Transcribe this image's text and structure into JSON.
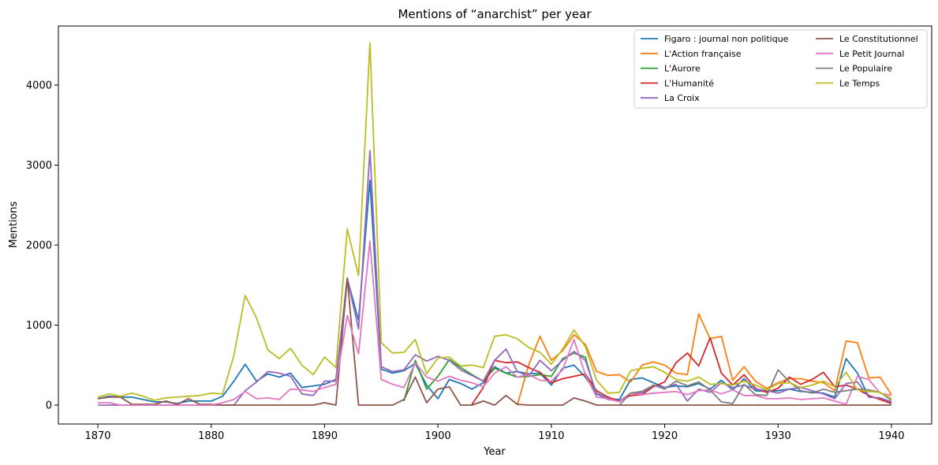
{
  "chart_data": {
    "type": "line",
    "title": "Mentions of “anarchist” per year",
    "xlabel": "Year",
    "ylabel": "Mentions",
    "xlim": [
      1870,
      1940
    ],
    "ylim": [
      0,
      4500
    ],
    "xticks": [
      "1870",
      "1880",
      "1890",
      "1900",
      "1910",
      "1920",
      "1930",
      "1940"
    ],
    "yticks": [
      "0",
      "1000",
      "2000",
      "3000",
      "4000"
    ],
    "legend_position": "top-right",
    "legend_columns": 2,
    "grid": false,
    "series": [
      {
        "name": "Figaro : journal non politique",
        "color": "#1f77b4",
        "x": [
          1870,
          1871,
          1872,
          1873,
          1874,
          1875,
          1876,
          1877,
          1878,
          1879,
          1880,
          1881,
          1882,
          1883,
          1884,
          1885,
          1886,
          1887,
          1888,
          1889,
          1890,
          1891,
          1892,
          1893,
          1894,
          1895,
          1896,
          1897,
          1898,
          1899,
          1900,
          1901,
          1902,
          1903,
          1904,
          1905,
          1906,
          1907,
          1908,
          1909,
          1910,
          1911,
          1912,
          1913,
          1914,
          1915,
          1916,
          1917,
          1918,
          1919,
          1920,
          1921,
          1922,
          1923,
          1924,
          1925,
          1926,
          1927,
          1928,
          1929,
          1930,
          1931,
          1932,
          1933,
          1934,
          1935,
          1936,
          1937,
          1938,
          1939,
          1940
        ],
        "y": [
          80,
          110,
          100,
          100,
          70,
          40,
          40,
          20,
          50,
          50,
          50,
          110,
          300,
          510,
          300,
          390,
          350,
          400,
          220,
          240,
          260,
          320,
          1580,
          1060,
          2810,
          450,
          400,
          430,
          520,
          250,
          80,
          320,
          270,
          200,
          280,
          480,
          400,
          420,
          390,
          400,
          250,
          460,
          500,
          350,
          150,
          80,
          70,
          320,
          340,
          280,
          220,
          240,
          230,
          270,
          200,
          310,
          190,
          330,
          180,
          170,
          180,
          200,
          170,
          160,
          150,
          100,
          580,
          400,
          100,
          90,
          30
        ]
      },
      {
        "name": "L'Action française",
        "color": "#ff7f0e",
        "x": [
          1907,
          1908,
          1909,
          1910,
          1911,
          1912,
          1913,
          1914,
          1915,
          1916,
          1917,
          1918,
          1919,
          1920,
          1921,
          1922,
          1923,
          1924,
          1925,
          1926,
          1927,
          1928,
          1929,
          1930,
          1931,
          1932,
          1933,
          1934,
          1935,
          1936,
          1937,
          1938,
          1939,
          1940
        ],
        "y": [
          0,
          500,
          860,
          560,
          680,
          880,
          760,
          420,
          370,
          380,
          290,
          500,
          540,
          500,
          400,
          380,
          1140,
          830,
          860,
          310,
          480,
          300,
          210,
          280,
          330,
          330,
          300,
          280,
          180,
          800,
          780,
          340,
          350,
          130
        ]
      },
      {
        "name": "L'Aurore",
        "color": "#2ca02c",
        "x": [
          1897,
          1898,
          1899,
          1900,
          1901,
          1902,
          1903,
          1904,
          1905,
          1906,
          1907,
          1908,
          1909,
          1910,
          1911,
          1912,
          1913,
          1914
        ],
        "y": [
          50,
          560,
          200,
          360,
          570,
          470,
          380,
          300,
          460,
          400,
          350,
          360,
          380,
          360,
          580,
          650,
          600,
          100
        ]
      },
      {
        "name": "L'Humanité",
        "color": "#d62728",
        "x": [
          1903,
          1904,
          1905,
          1906,
          1907,
          1908,
          1909,
          1910,
          1911,
          1912,
          1913,
          1914,
          1915,
          1916,
          1917,
          1918,
          1919,
          1920,
          1921,
          1922,
          1923,
          1924,
          1925,
          1926,
          1927,
          1928,
          1929,
          1930,
          1931,
          1932,
          1933,
          1934,
          1935,
          1936,
          1937,
          1938,
          1939,
          1940
        ],
        "y": [
          10,
          220,
          560,
          530,
          540,
          470,
          410,
          280,
          330,
          360,
          390,
          180,
          100,
          50,
          120,
          130,
          230,
          290,
          530,
          650,
          490,
          840,
          400,
          250,
          380,
          210,
          160,
          210,
          350,
          260,
          320,
          410,
          230,
          250,
          200,
          120,
          70,
          20
        ]
      },
      {
        "name": "La Croix",
        "color": "#9467bd",
        "x": [
          1870,
          1871,
          1872,
          1873,
          1874,
          1875,
          1876,
          1877,
          1878,
          1879,
          1880,
          1881,
          1882,
          1883,
          1884,
          1885,
          1886,
          1887,
          1888,
          1889,
          1890,
          1891,
          1892,
          1893,
          1894,
          1895,
          1896,
          1897,
          1898,
          1899,
          1900,
          1901,
          1902,
          1903,
          1904,
          1905,
          1906,
          1907,
          1908,
          1909,
          1910,
          1911,
          1912,
          1913,
          1914,
          1915,
          1916,
          1917,
          1918,
          1919,
          1920,
          1921,
          1922,
          1923,
          1924,
          1925,
          1926,
          1927,
          1928,
          1929,
          1930,
          1931,
          1932,
          1933,
          1934,
          1935,
          1936,
          1937,
          1938,
          1939,
          1940
        ],
        "y": [
          0,
          0,
          0,
          0,
          0,
          0,
          0,
          0,
          0,
          0,
          0,
          0,
          0,
          180,
          290,
          420,
          400,
          360,
          140,
          120,
          300,
          300,
          1580,
          950,
          3180,
          480,
          420,
          440,
          630,
          550,
          610,
          560,
          440,
          370,
          300,
          560,
          700,
          420,
          360,
          560,
          430,
          560,
          670,
          560,
          140,
          70,
          50,
          150,
          150,
          250,
          220,
          260,
          50,
          200,
          160,
          280,
          220,
          250,
          200,
          180,
          150,
          200,
          220,
          180,
          140,
          80,
          270,
          290,
          100,
          90,
          40
        ]
      },
      {
        "name": "Le Constitutionnel",
        "color": "#8c564b",
        "x": [
          1870,
          1871,
          1872,
          1873,
          1874,
          1875,
          1876,
          1877,
          1878,
          1879,
          1880,
          1881,
          1882,
          1883,
          1884,
          1885,
          1886,
          1887,
          1888,
          1889,
          1890,
          1891,
          1892,
          1893,
          1894,
          1895,
          1896,
          1897,
          1898,
          1899,
          1900,
          1901,
          1902,
          1903,
          1904,
          1905,
          1906,
          1907,
          1908,
          1909,
          1910,
          1911,
          1912,
          1913,
          1914,
          1915,
          1916,
          1917,
          1918,
          1919,
          1920,
          1921,
          1922,
          1923,
          1924,
          1925,
          1926,
          1927,
          1928,
          1929,
          1930,
          1931,
          1932,
          1933,
          1934,
          1935,
          1936,
          1937,
          1938,
          1939,
          1940
        ],
        "y": [
          80,
          100,
          100,
          10,
          10,
          10,
          50,
          10,
          80,
          10,
          10,
          0,
          0,
          0,
          0,
          0,
          0,
          0,
          0,
          0,
          30,
          0,
          1590,
          0,
          0,
          0,
          0,
          70,
          350,
          30,
          200,
          230,
          0,
          0,
          50,
          0,
          120,
          10,
          0,
          0,
          0,
          0,
          90,
          50,
          0,
          0,
          0,
          0,
          0,
          0,
          0,
          0,
          0,
          0,
          0,
          0,
          0,
          0,
          0,
          0,
          0,
          0,
          0,
          0,
          0,
          0,
          0,
          0,
          0,
          0,
          0
        ]
      },
      {
        "name": "Le Petit Journal",
        "color": "#e377c2",
        "x": [
          1870,
          1871,
          1872,
          1873,
          1874,
          1875,
          1876,
          1877,
          1878,
          1879,
          1880,
          1881,
          1882,
          1883,
          1884,
          1885,
          1886,
          1887,
          1888,
          1889,
          1890,
          1891,
          1892,
          1893,
          1894,
          1895,
          1896,
          1897,
          1898,
          1899,
          1900,
          1901,
          1902,
          1903,
          1904,
          1905,
          1906,
          1907,
          1908,
          1909,
          1910,
          1911,
          1912,
          1913,
          1914,
          1915,
          1916,
          1917,
          1918,
          1919,
          1920,
          1921,
          1922,
          1923,
          1924,
          1925,
          1926,
          1927,
          1928,
          1929,
          1930,
          1931,
          1932,
          1933,
          1934,
          1935,
          1936,
          1937,
          1938,
          1939,
          1940
        ],
        "y": [
          30,
          30,
          0,
          0,
          0,
          0,
          0,
          0,
          0,
          0,
          0,
          30,
          70,
          170,
          80,
          90,
          70,
          200,
          190,
          170,
          220,
          260,
          1120,
          640,
          2050,
          320,
          260,
          220,
          530,
          350,
          300,
          360,
          310,
          280,
          230,
          400,
          480,
          350,
          380,
          310,
          300,
          440,
          820,
          380,
          100,
          80,
          40,
          150,
          130,
          150,
          160,
          170,
          130,
          180,
          190,
          140,
          190,
          120,
          120,
          80,
          80,
          90,
          70,
          80,
          90,
          50,
          10,
          360,
          320,
          150,
          120
        ]
      },
      {
        "name": "Le Populaire",
        "color": "#7f7f7f",
        "x": [
          1916,
          1917,
          1918,
          1919,
          1920,
          1921,
          1922,
          1923,
          1924,
          1925,
          1926,
          1927,
          1928,
          1929,
          1930,
          1931,
          1932,
          1933,
          1934,
          1935,
          1936,
          1937,
          1938,
          1939,
          1940
        ],
        "y": [
          0,
          150,
          170,
          250,
          200,
          300,
          240,
          290,
          190,
          40,
          20,
          260,
          130,
          120,
          440,
          290,
          180,
          150,
          200,
          160,
          180,
          200,
          190,
          160,
          60
        ]
      },
      {
        "name": "Le Temps",
        "color": "#bcbd22",
        "x": [
          1870,
          1871,
          1872,
          1873,
          1874,
          1875,
          1876,
          1877,
          1878,
          1879,
          1880,
          1881,
          1882,
          1883,
          1884,
          1885,
          1886,
          1887,
          1888,
          1889,
          1890,
          1891,
          1892,
          1893,
          1894,
          1895,
          1896,
          1897,
          1898,
          1899,
          1900,
          1901,
          1902,
          1903,
          1904,
          1905,
          1906,
          1907,
          1908,
          1909,
          1910,
          1911,
          1912,
          1913,
          1914,
          1915,
          1916,
          1917,
          1918,
          1919,
          1920,
          1921,
          1922,
          1923,
          1924,
          1925,
          1926,
          1927,
          1928,
          1929,
          1930,
          1931,
          1932,
          1933,
          1934,
          1935,
          1936,
          1937,
          1938,
          1939,
          1940
        ],
        "y": [
          100,
          140,
          110,
          150,
          110,
          60,
          90,
          100,
          110,
          120,
          150,
          140,
          620,
          1370,
          1090,
          690,
          580,
          710,
          500,
          380,
          600,
          470,
          2200,
          1620,
          4530,
          780,
          650,
          660,
          820,
          390,
          590,
          600,
          490,
          500,
          470,
          860,
          880,
          830,
          720,
          660,
          510,
          700,
          940,
          730,
          310,
          150,
          160,
          430,
          460,
          480,
          410,
          320,
          300,
          350,
          260,
          270,
          250,
          300,
          250,
          190,
          270,
          280,
          220,
          250,
          300,
          230,
          410,
          190,
          170,
          160,
          80
        ]
      }
    ]
  }
}
